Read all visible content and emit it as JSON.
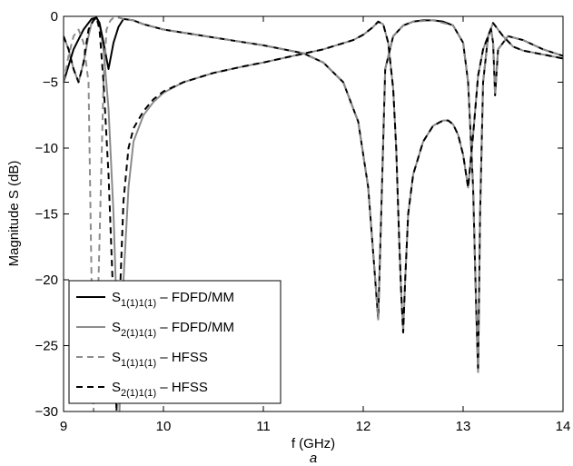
{
  "chart_data": {
    "type": "line",
    "title": "",
    "xlabel": "f (GHz)",
    "ylabel": "Magnitude S (dB)",
    "caption": "a",
    "xlim": [
      9,
      14
    ],
    "ylim": [
      -30,
      0
    ],
    "xticks": [
      9,
      10,
      11,
      12,
      13,
      14
    ],
    "yticks": [
      0,
      -5,
      -10,
      -15,
      -20,
      -25,
      -30
    ],
    "grid": false,
    "legend_position": "bottom-left",
    "series": [
      {
        "name": "S1(1)1(1) – FDFD/MM",
        "label_main": "S",
        "label_sub": "1(1)1(1)",
        "label_rest": " – FDFD/MM",
        "color": "#000000",
        "dash": "solid",
        "x": [
          9.0,
          9.1,
          9.2,
          9.28,
          9.33,
          9.36,
          9.4,
          9.45,
          9.5,
          9.55,
          9.6,
          9.7,
          9.8,
          10.0,
          10.5,
          11.0,
          11.4,
          11.6,
          11.8,
          11.95,
          12.05,
          12.1,
          12.15,
          12.18,
          12.22,
          12.3,
          12.4,
          12.5,
          12.6,
          12.7,
          12.8,
          12.9,
          13.0,
          13.05,
          13.1,
          13.13,
          13.15,
          13.17,
          13.2,
          13.25,
          13.28,
          13.3,
          13.32,
          13.35,
          13.45,
          13.6,
          13.8,
          14.0
        ],
        "values": [
          -5.0,
          -2.5,
          -1.0,
          -0.2,
          -0.1,
          -0.5,
          -2.0,
          -4.0,
          -2.0,
          -0.8,
          -0.2,
          -0.3,
          -0.6,
          -1.0,
          -1.6,
          -2.2,
          -2.8,
          -3.5,
          -5.0,
          -8.0,
          -13.0,
          -18.0,
          -23.0,
          -15.0,
          -4.0,
          -1.5,
          -0.7,
          -0.4,
          -0.3,
          -0.3,
          -0.4,
          -0.7,
          -2.0,
          -5.0,
          -13.0,
          -22.0,
          -27.0,
          -15.0,
          -5.0,
          -1.5,
          -1.0,
          -2.0,
          -6.0,
          -2.5,
          -1.5,
          -1.8,
          -2.5,
          -3.0
        ]
      },
      {
        "name": "S2(1)1(1) – FDFD/MM",
        "label_main": "S",
        "label_sub": "2(1)1(1)",
        "label_rest": " – FDFD/MM",
        "color": "#8c8c8c",
        "dash": "solid",
        "x": [
          9.0,
          9.05,
          9.1,
          9.15,
          9.2,
          9.25,
          9.28,
          9.3,
          9.33,
          9.36,
          9.4,
          9.45,
          9.5,
          9.53,
          9.56,
          9.6,
          9.65,
          9.7,
          9.8,
          9.9,
          10.0,
          10.2,
          10.5,
          10.8,
          11.0,
          11.3,
          11.6,
          11.9,
          12.0,
          12.1,
          12.15,
          12.2,
          12.25,
          12.3,
          12.33,
          12.36,
          12.38,
          12.4,
          12.42,
          12.45,
          12.5,
          12.6,
          12.7,
          12.8,
          12.85,
          12.9,
          12.95,
          13.0,
          13.05,
          13.1,
          13.15,
          13.2,
          13.25,
          13.3,
          13.4,
          13.5,
          13.6,
          13.8,
          14.0
        ],
        "values": [
          -1.5,
          -2.5,
          -4.0,
          -5.0,
          -3.5,
          -1.5,
          -0.5,
          -0.2,
          -0.1,
          -0.6,
          -2.5,
          -7.0,
          -15.0,
          -22.0,
          -30.0,
          -20.0,
          -13.0,
          -9.5,
          -7.5,
          -6.5,
          -5.8,
          -5.0,
          -4.3,
          -3.8,
          -3.5,
          -3.0,
          -2.5,
          -1.8,
          -1.4,
          -0.8,
          -0.4,
          -0.6,
          -2.0,
          -5.5,
          -10.0,
          -17.0,
          -21.0,
          -24.0,
          -20.0,
          -15.0,
          -12.0,
          -9.5,
          -8.3,
          -7.9,
          -7.9,
          -8.2,
          -9.0,
          -10.5,
          -13.0,
          -9.0,
          -4.5,
          -2.5,
          -1.5,
          -0.5,
          -1.5,
          -2.3,
          -2.6,
          -2.9,
          -3.2
        ]
      },
      {
        "name": "S1(1)1(1) – HFSS",
        "label_main": "S",
        "label_sub": "1(1)1(1)",
        "label_rest": " – HFSS",
        "color": "#8c8c8c",
        "dash": "dashed",
        "x": [
          9.0,
          9.05,
          9.1,
          9.15,
          9.2,
          9.25,
          9.3,
          9.35,
          9.4,
          9.43,
          9.47,
          9.5,
          9.55,
          9.6,
          9.7,
          9.8,
          10.0,
          10.5,
          11.0,
          11.4,
          11.6,
          11.8,
          11.95,
          12.05,
          12.1,
          12.15,
          12.18,
          12.22,
          12.3,
          12.4,
          12.5,
          12.7,
          12.9,
          13.0,
          13.05,
          13.1,
          13.13,
          13.15,
          13.17,
          13.2,
          13.25,
          13.28,
          13.3,
          13.32,
          13.35,
          13.45,
          13.6,
          13.8,
          14.0
        ],
        "values": [
          -5.0,
          -3.0,
          -1.5,
          -1.0,
          -2.0,
          -5.0,
          -30.0,
          -20.0,
          -5.0,
          -1.0,
          -0.3,
          -0.1,
          -0.1,
          -0.2,
          -0.3,
          -0.6,
          -1.0,
          -1.6,
          -2.2,
          -2.8,
          -3.5,
          -5.0,
          -8.0,
          -13.0,
          -18.0,
          -23.0,
          -15.0,
          -4.0,
          -1.5,
          -0.7,
          -0.4,
          -0.3,
          -0.7,
          -2.0,
          -5.0,
          -13.0,
          -22.0,
          -27.0,
          -15.0,
          -5.0,
          -1.5,
          -1.0,
          -2.0,
          -6.0,
          -2.5,
          -1.5,
          -1.8,
          -2.5,
          -3.0
        ]
      },
      {
        "name": "S2(1)1(1) – HFSS",
        "label_main": "S",
        "label_sub": "2(1)1(1)",
        "label_rest": " – HFSS",
        "color": "#000000",
        "dash": "dashed",
        "x": [
          9.0,
          9.05,
          9.1,
          9.15,
          9.2,
          9.25,
          9.3,
          9.33,
          9.36,
          9.4,
          9.45,
          9.5,
          9.53,
          9.56,
          9.6,
          9.65,
          9.7,
          9.8,
          9.9,
          10.0,
          10.2,
          10.5,
          10.8,
          11.0,
          11.3,
          11.6,
          11.9,
          12.0,
          12.1,
          12.15,
          12.2,
          12.25,
          12.3,
          12.33,
          12.36,
          12.38,
          12.4,
          12.42,
          12.45,
          12.5,
          12.6,
          12.7,
          12.8,
          12.85,
          12.9,
          12.95,
          13.0,
          13.05,
          13.1,
          13.15,
          13.2,
          13.25,
          13.3,
          13.4,
          13.5,
          13.6,
          13.8,
          14.0
        ],
        "values": [
          -1.5,
          -2.5,
          -4.0,
          -5.0,
          -3.5,
          -1.0,
          -0.3,
          -0.1,
          -1.0,
          -5.0,
          -12.0,
          -22.0,
          -30.0,
          -22.0,
          -14.0,
          -10.0,
          -8.5,
          -7.2,
          -6.3,
          -5.7,
          -5.0,
          -4.3,
          -3.8,
          -3.5,
          -3.0,
          -2.5,
          -1.8,
          -1.4,
          -0.8,
          -0.4,
          -0.6,
          -2.0,
          -5.5,
          -10.0,
          -17.0,
          -21.0,
          -24.0,
          -20.0,
          -15.0,
          -12.0,
          -9.5,
          -8.3,
          -7.9,
          -7.9,
          -8.2,
          -9.0,
          -10.5,
          -13.0,
          -9.0,
          -4.5,
          -2.5,
          -1.5,
          -0.5,
          -1.5,
          -2.3,
          -2.6,
          -2.9,
          -3.2
        ]
      }
    ]
  }
}
